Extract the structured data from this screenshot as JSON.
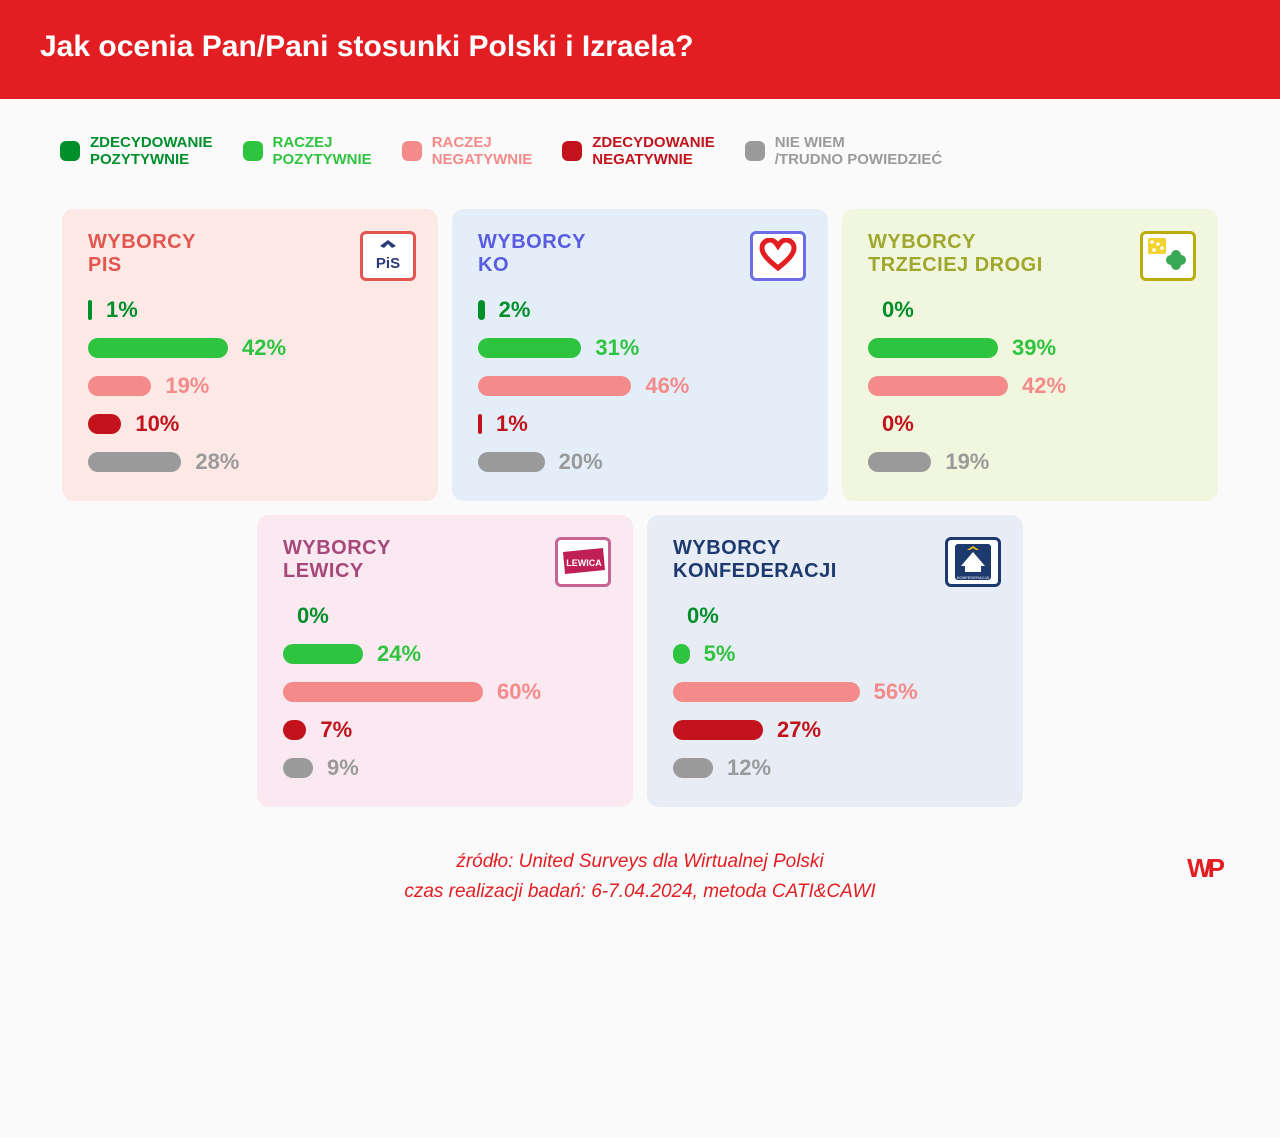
{
  "title": "Jak ocenia Pan/Pani stosunki Polski i Izraela?",
  "header_bg": "#e31e23",
  "legend": [
    {
      "label": "ZDECYDOWANIE\nPOZYTYWNIE",
      "color": "#008f2b"
    },
    {
      "label": "RACZEJ\nPOZYTYWNIE",
      "color": "#2fc43f"
    },
    {
      "label": "RACZEJ\nNEGATYWNIE",
      "color": "#f48a8a"
    },
    {
      "label": "ZDECYDOWANIE\nNEGATYWNIE",
      "color": "#c2121b"
    },
    {
      "label": "NIE WIEM\n/TRUDNO POWIEDZIEĆ",
      "color": "#9a9a9a"
    }
  ],
  "bar_max_pct": 100,
  "bar_track_width": 290,
  "panels": [
    {
      "title": "WYBORCY\nPIS",
      "title_color": "#e3564f",
      "bg": "#fce9e6",
      "logo_border": "#e3564f",
      "logo_text": "PiS",
      "logo_text_color": "#2a3a7a",
      "logo_svg": "pis",
      "values": [
        1,
        42,
        19,
        10,
        28
      ]
    },
    {
      "title": "WYBORCY\nKO",
      "title_color": "#5a5be0",
      "bg": "#e4eef8",
      "logo_border": "#6d6de6",
      "logo_svg": "heart",
      "values": [
        2,
        31,
        46,
        1,
        20
      ]
    },
    {
      "title": "WYBORCY\nTRZECIEJ DROGI",
      "title_color": "#9ea82c",
      "bg": "#f1f6de",
      "logo_border": "#b9ac0d",
      "logo_svg": "clover",
      "values": [
        0,
        39,
        42,
        0,
        19
      ]
    },
    {
      "title": "WYBORCY\nLEWICY",
      "title_color": "#a6487a",
      "bg": "#fbe9f1",
      "logo_border": "#c66494",
      "logo_svg": "lewica",
      "values": [
        0,
        24,
        60,
        7,
        9
      ]
    },
    {
      "title": "WYBORCY\nKONFEDERACJI",
      "title_color": "#1c3a6e",
      "bg": "#e7ecf5",
      "logo_border": "#1c3a6e",
      "logo_svg": "konf",
      "values": [
        0,
        5,
        56,
        27,
        12
      ]
    }
  ],
  "series_colors": [
    "#008f2b",
    "#2fc43f",
    "#f48a8a",
    "#c2121b",
    "#9a9a9a"
  ],
  "footer": {
    "source": "źródło: United Surveys dla Wirtualnej Polski",
    "meta": "czas realizacji badań: 6-7.04.2024, metoda CATI&CAWI",
    "brand": "WP"
  }
}
